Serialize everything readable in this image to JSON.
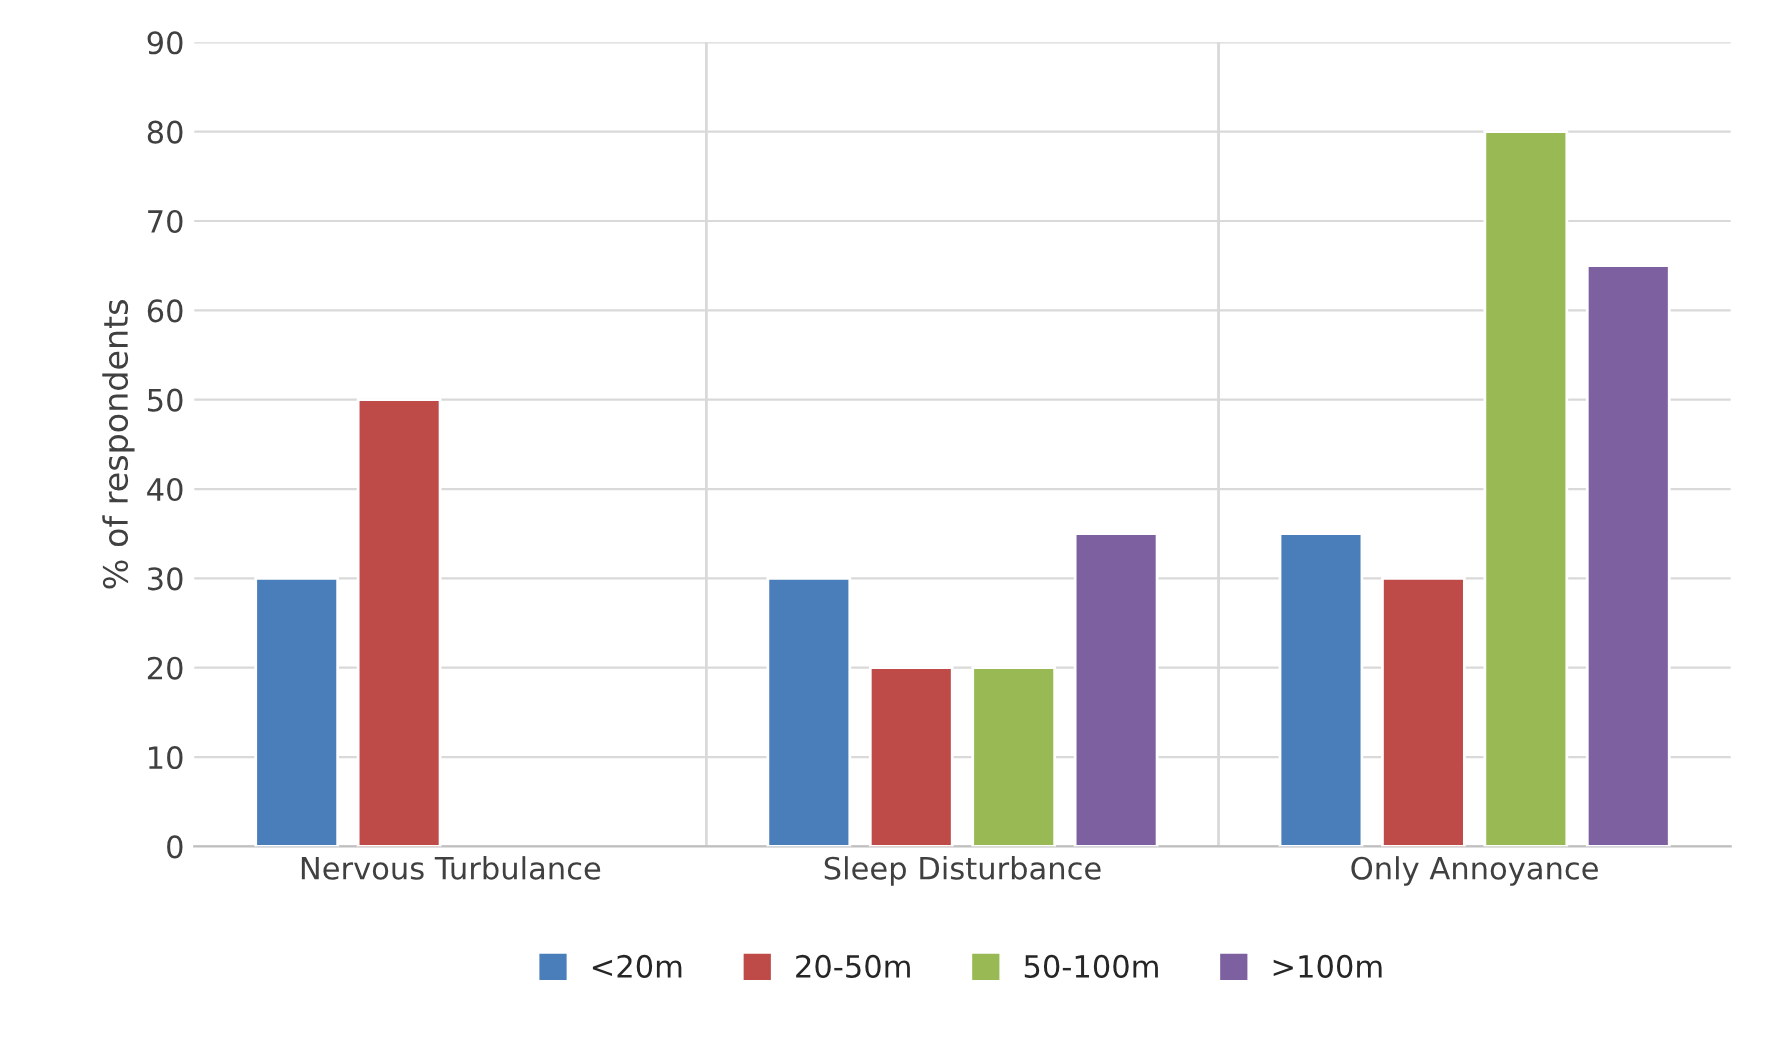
{
  "chart_data": {
    "type": "bar",
    "ylabel": "% of respondents",
    "categories": [
      "Nervous Turbulance",
      "Sleep Disturbance",
      "Only Annoyance"
    ],
    "series": [
      {
        "name": "<20m",
        "color": "#4a7ebb",
        "values": [
          30,
          30,
          35
        ]
      },
      {
        "name": "20-50m",
        "color": "#be4b48",
        "values": [
          50,
          20,
          30
        ]
      },
      {
        "name": "50-100m",
        "color": "#98b954",
        "values": [
          null,
          20,
          80
        ]
      },
      {
        "name": ">100m",
        "color": "#7d60a0",
        "values": [
          null,
          35,
          65
        ]
      }
    ],
    "ylim": [
      0,
      90
    ],
    "yticks": [
      0,
      10,
      20,
      30,
      40,
      50,
      60,
      70,
      80,
      90
    ],
    "grid": true,
    "legend": "bottom"
  }
}
